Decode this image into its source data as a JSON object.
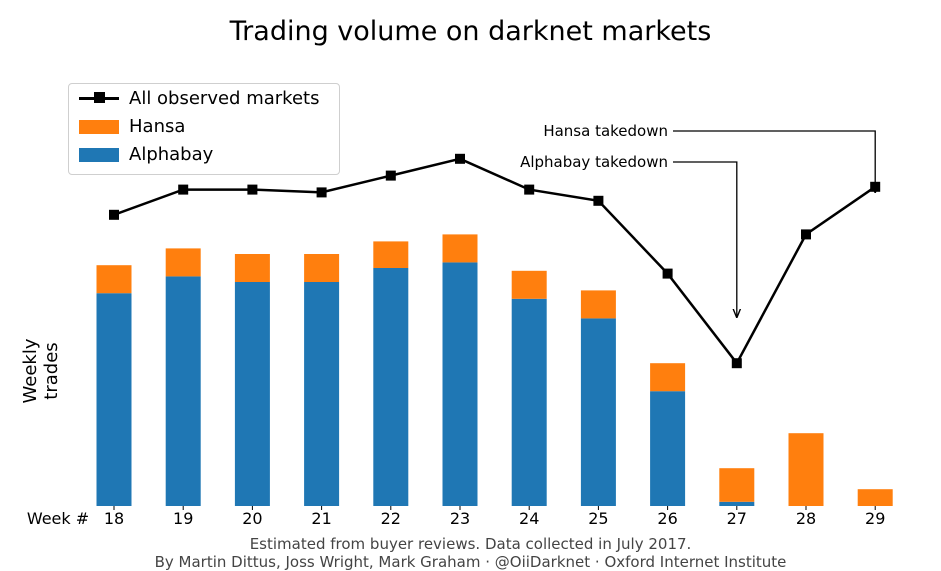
{
  "colors": {
    "line": "#000000",
    "hansa": "#ff7f0e",
    "alphabay": "#1f77b4"
  },
  "footer": {
    "line1": "Estimated from buyer reviews. Data collected in July 2017.",
    "line2": "By Martin Dittus, Joss Wright, Mark Graham · @OiiDarknet · Oxford Internet Institute"
  },
  "chart_data": {
    "type": "bar",
    "title": "Trading volume on darknet markets",
    "ylabel": "Weekly trades",
    "xlabel": "Week #",
    "categories": [
      "18",
      "19",
      "20",
      "21",
      "22",
      "23",
      "24",
      "25",
      "26",
      "27",
      "28",
      "29"
    ],
    "series": [
      {
        "name": "Alphabay",
        "kind": "stacked-bar",
        "values": [
          76,
          82,
          80,
          80,
          85,
          87,
          74,
          67,
          41,
          1.5,
          0,
          0
        ]
      },
      {
        "name": "Hansa",
        "kind": "stacked-bar",
        "values": [
          10,
          10,
          10,
          10,
          9.5,
          10,
          10,
          10,
          10,
          12,
          26,
          6
        ]
      },
      {
        "name": "All observed markets",
        "kind": "line",
        "values": [
          104,
          113,
          113,
          112,
          118,
          124,
          113,
          109,
          83,
          51,
          97,
          114
        ]
      }
    ],
    "ylim": [
      0,
      140
    ],
    "y_ticks_shown": false,
    "grid": false,
    "legend_position": "top-left",
    "annotations": [
      {
        "text": "Hansa takedown",
        "target_week": "29"
      },
      {
        "text": "Alphabay takedown",
        "target_week": "27"
      }
    ]
  }
}
